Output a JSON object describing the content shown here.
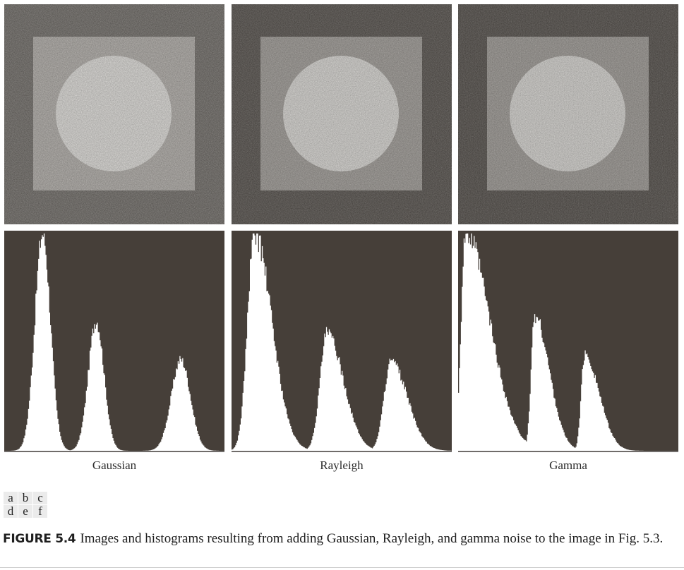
{
  "panels": [
    {
      "letter": "a",
      "noise": "Gaussian",
      "outer_gray": "#66625d",
      "square_gray": "#a8a49f",
      "circle_gray": "#d8d6d2"
    },
    {
      "letter": "b",
      "noise": "Rayleigh",
      "outer_gray": "#4f4a45",
      "square_gray": "#98948f",
      "circle_gray": "#d3d1cd"
    },
    {
      "letter": "c",
      "noise": "Gamma",
      "outer_gray": "#4c4742",
      "square_gray": "#96928d",
      "circle_gray": "#d0ceca"
    }
  ],
  "chart_data": [
    {
      "type": "area",
      "panel": "d",
      "xlabel": "Gaussian",
      "xlim": [
        0,
        255
      ],
      "ylim": [
        0,
        1
      ],
      "peaks": [
        {
          "center": 44,
          "height": 1.0,
          "sigma_left": 9,
          "sigma_right": 9
        },
        {
          "center": 106,
          "height": 0.6,
          "sigma_left": 9,
          "sigma_right": 9
        },
        {
          "center": 204,
          "height": 0.42,
          "sigma_left": 11,
          "sigma_right": 11
        }
      ]
    },
    {
      "type": "area",
      "panel": "e",
      "xlabel": "Rayleigh",
      "xlim": [
        0,
        255
      ],
      "ylim": [
        0,
        1
      ],
      "peaks": [
        {
          "center": 26,
          "height": 1.0,
          "sigma_left": 8,
          "sigma_right": 20
        },
        {
          "center": 110,
          "height": 0.54,
          "sigma_left": 8,
          "sigma_right": 19
        },
        {
          "center": 184,
          "height": 0.41,
          "sigma_left": 8,
          "sigma_right": 19
        }
      ]
    },
    {
      "type": "area",
      "panel": "f",
      "xlabel": "Gamma",
      "xlim": [
        0,
        255
      ],
      "ylim": [
        0,
        1
      ],
      "peaks": [
        {
          "center": 8,
          "height": 1.0,
          "sigma_left": 5,
          "sigma_right": 28
        },
        {
          "center": 88,
          "height": 0.62,
          "sigma_left": 4,
          "sigma_right": 17
        },
        {
          "center": 146,
          "height": 0.44,
          "sigma_left": 4,
          "sigma_right": 17
        }
      ]
    }
  ],
  "colors": {
    "histogram_background": "#463f39",
    "histogram_fill": "#ffffff",
    "axis_line": "#9a9a9a"
  },
  "panel_key": [
    [
      "a",
      "b",
      "c"
    ],
    [
      "d",
      "e",
      "f"
    ]
  ],
  "caption": {
    "label": "FIGURE 5.4",
    "text": "Images and histograms resulting from adding Gaussian, Rayleigh, and gamma noise to the image in Fig. 5.3."
  }
}
